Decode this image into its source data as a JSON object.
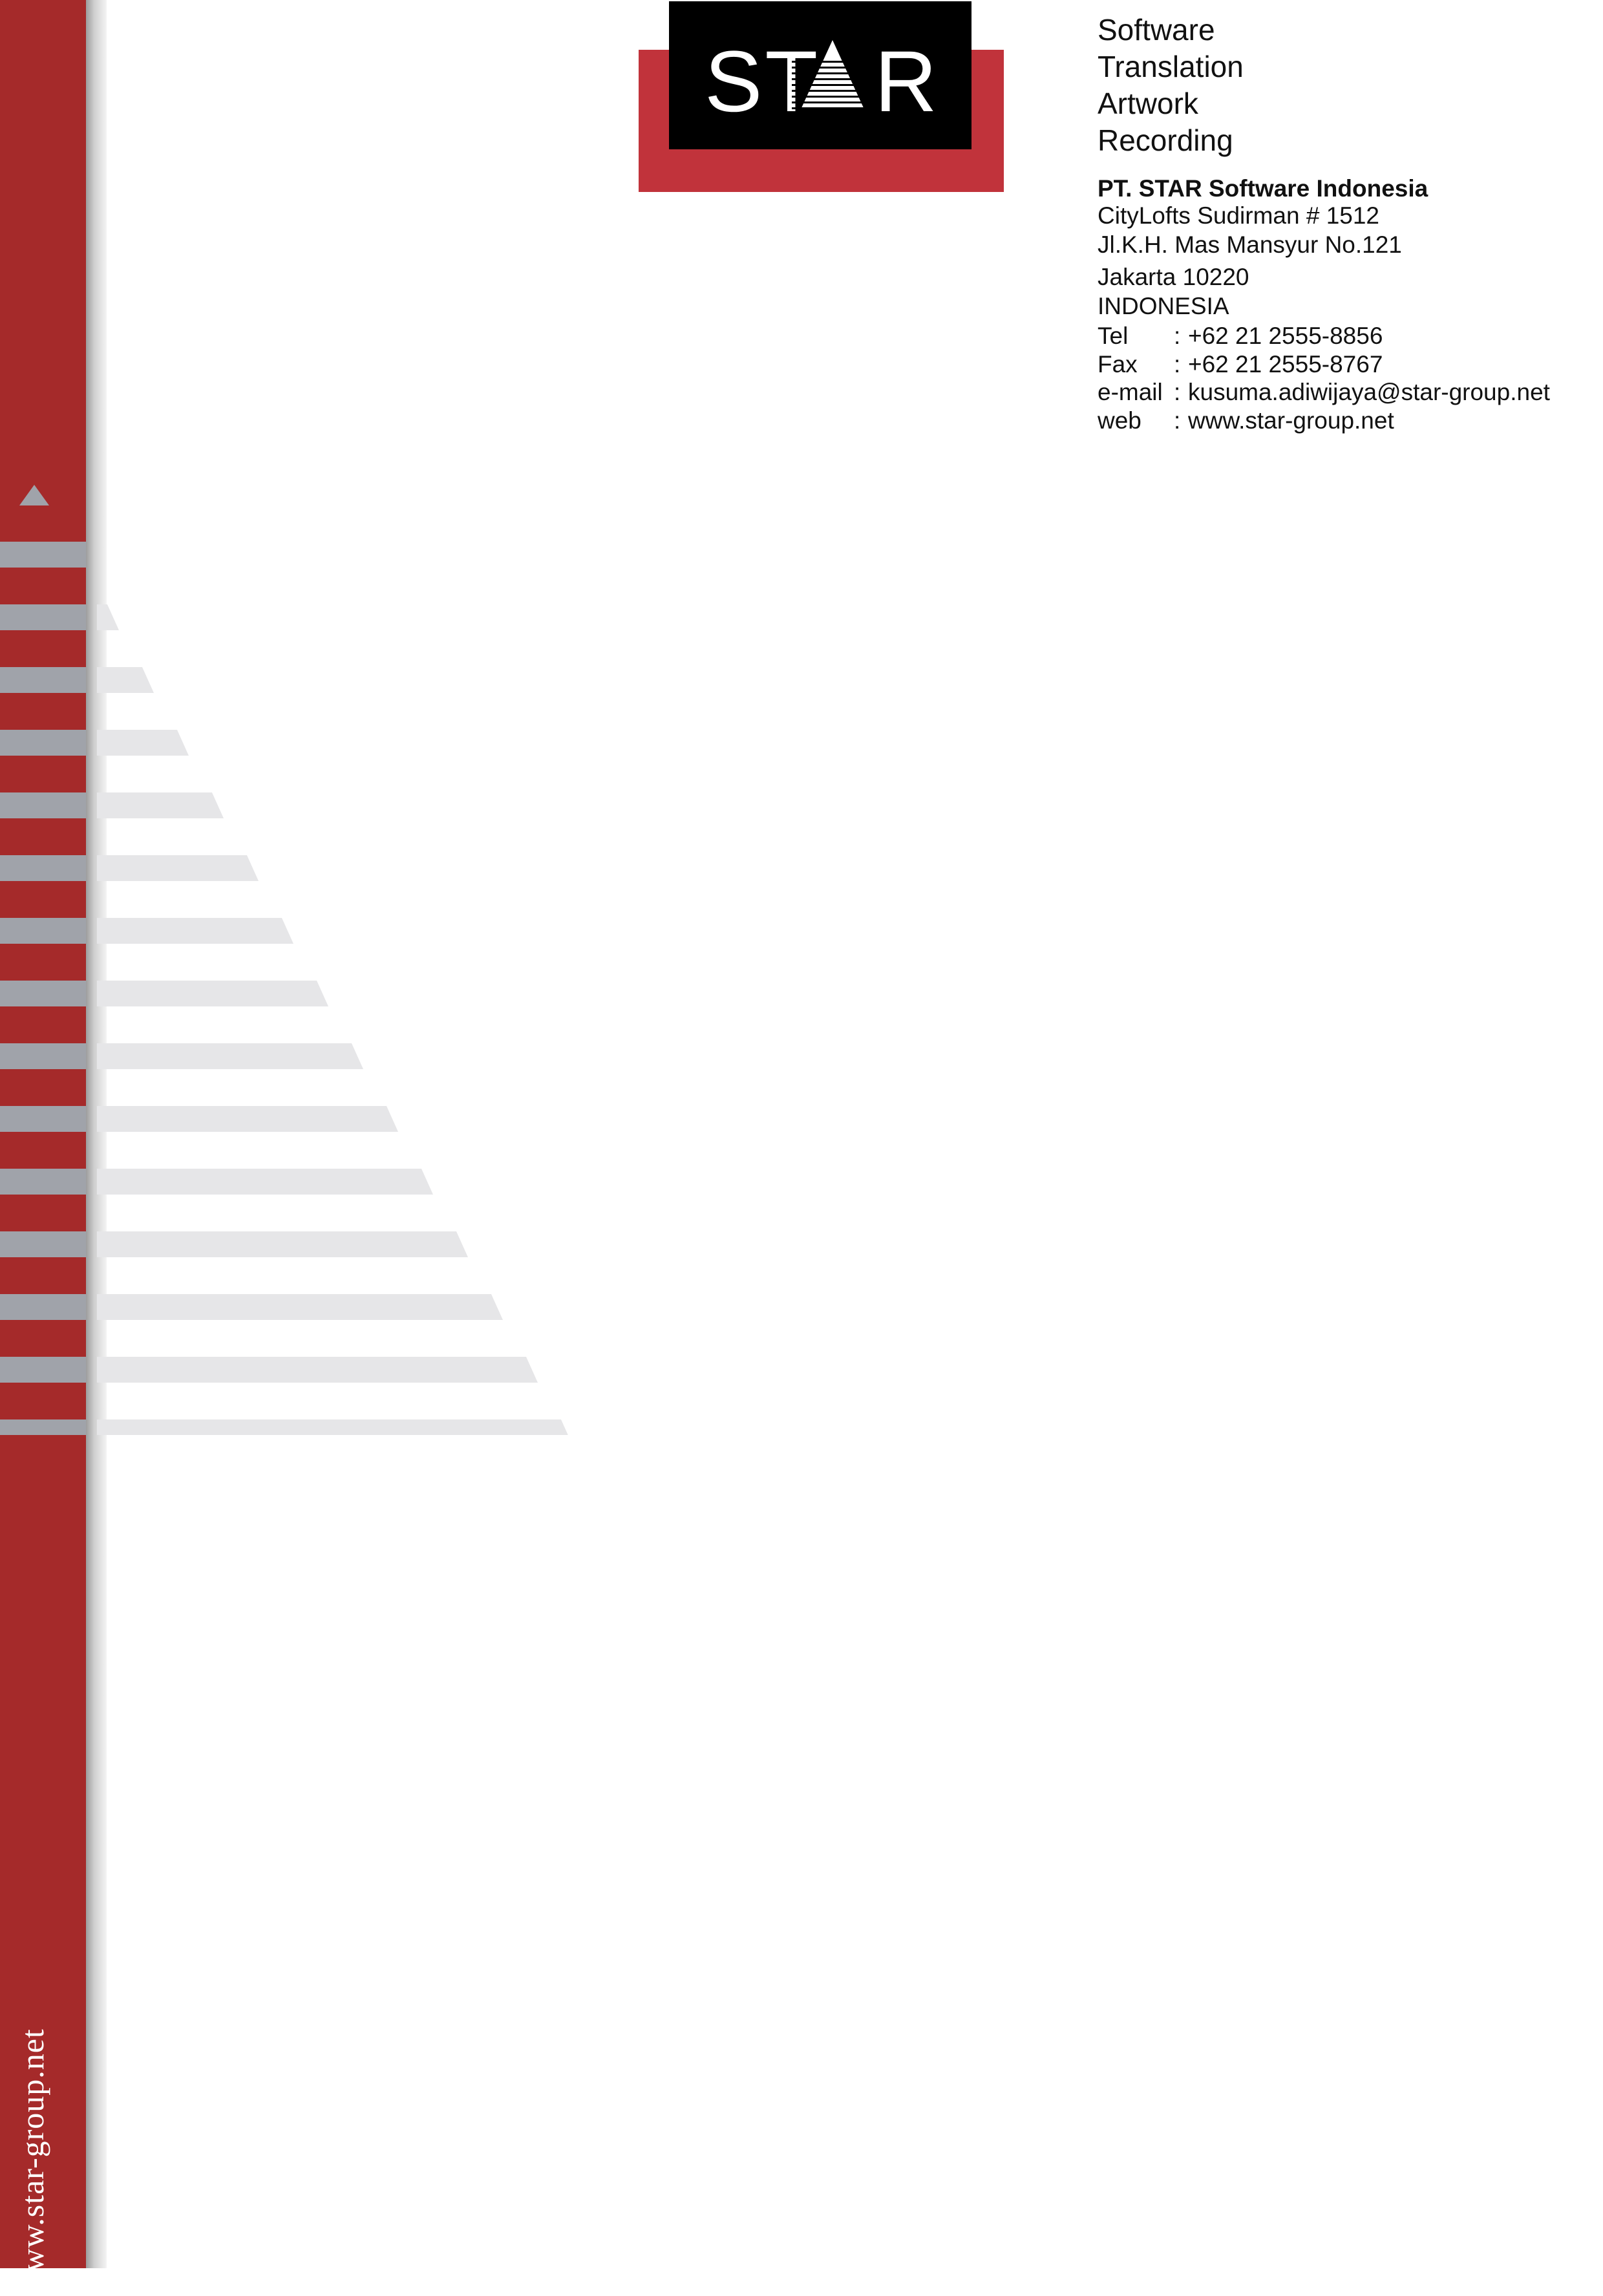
{
  "colors": {
    "sidebar_red": "#a52a2a",
    "logo_red": "#c1333b",
    "logo_black": "#000000",
    "stripe_gray": "#e6e6e8",
    "sidebar_stripe_gray": "#a0a3aa"
  },
  "logo": {
    "text_left": "ST",
    "text_right": "R",
    "icon": "triangle-icon"
  },
  "services": [
    "Software",
    "Translation",
    "Artwork",
    "Recording"
  ],
  "company": {
    "name": "PT. STAR Software Indonesia",
    "address_lines": [
      "CityLofts Sudirman # 1512",
      "Jl.K.H. Mas Mansyur No.121"
    ],
    "city": "Jakarta 10220",
    "country": "INDONESIA"
  },
  "contact": {
    "separator": ":",
    "rows": [
      {
        "label": "Tel",
        "value": "+62 21 2555-8856"
      },
      {
        "label": "Fax",
        "value": "+62 21 2555-8767"
      },
      {
        "label": "e-mail",
        "value": "kusuma.adiwijaya@star-group.net"
      },
      {
        "label": "web",
        "value": "www.star-group.net"
      }
    ]
  },
  "sidebar": {
    "url": "www.star-group.net"
  }
}
